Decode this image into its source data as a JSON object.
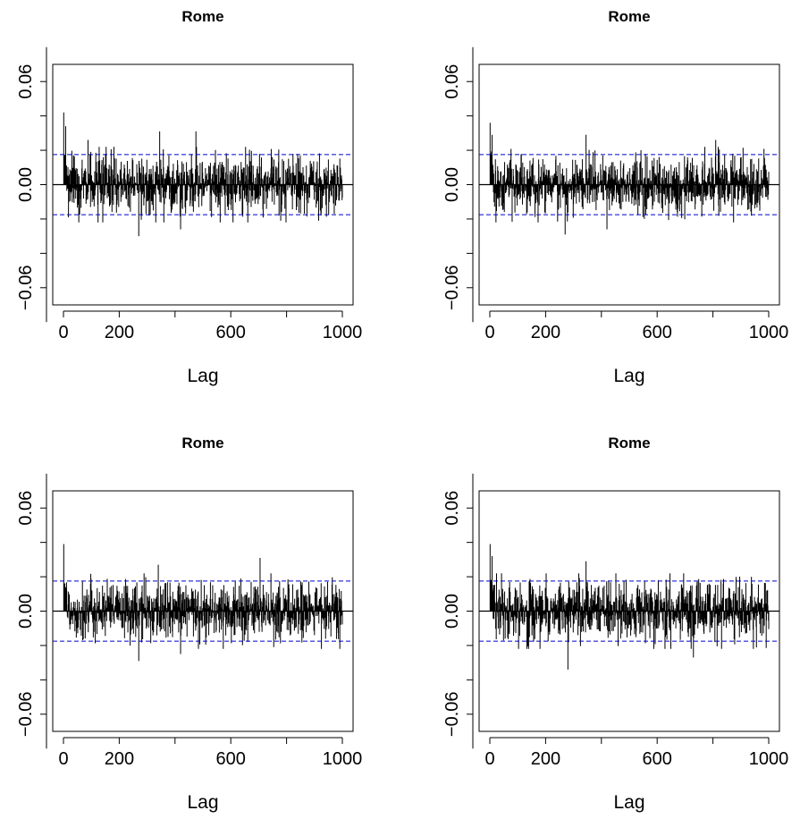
{
  "chart_data": [
    {
      "type": "bar",
      "title": "Rome",
      "xlabel": "Lag",
      "ylabel": "",
      "xlim": [
        0,
        1000
      ],
      "ylim": [
        -0.07,
        0.07
      ],
      "xticks": [
        0,
        200,
        600,
        1000
      ],
      "xtick_labels": [
        "0",
        "200",
        "600",
        "1000"
      ],
      "yticks": [
        -0.06,
        0.0,
        0.06
      ],
      "ytick_labels": [
        "−0.06",
        "0.00",
        "0.06"
      ],
      "confidence_band": 0.0175,
      "lag1_value": 0.042,
      "notable_spikes": [
        [
          8,
          0.034
        ],
        [
          88,
          0.026
        ],
        [
          270,
          -0.03
        ],
        [
          345,
          0.031
        ],
        [
          420,
          -0.026
        ],
        [
          475,
          0.031
        ]
      ],
      "grid": false,
      "legend": "none"
    },
    {
      "type": "bar",
      "title": "Rome",
      "xlabel": "Lag",
      "ylabel": "",
      "xlim": [
        0,
        1000
      ],
      "ylim": [
        -0.07,
        0.07
      ],
      "xticks": [
        0,
        200,
        600,
        1000
      ],
      "xtick_labels": [
        "0",
        "200",
        "600",
        "1000"
      ],
      "yticks": [
        -0.06,
        0.0,
        0.06
      ],
      "ytick_labels": [
        "−0.06",
        "0.00",
        "0.06"
      ],
      "confidence_band": 0.0175,
      "lag1_value": 0.036,
      "notable_spikes": [
        [
          8,
          0.029
        ],
        [
          270,
          -0.029
        ],
        [
          345,
          0.029
        ],
        [
          420,
          -0.026
        ],
        [
          810,
          0.026
        ]
      ],
      "grid": false,
      "legend": "none"
    },
    {
      "type": "bar",
      "title": "Rome",
      "xlabel": "Lag",
      "ylabel": "",
      "xlim": [
        0,
        1000
      ],
      "ylim": [
        -0.07,
        0.07
      ],
      "xticks": [
        0,
        200,
        600,
        1000
      ],
      "xtick_labels": [
        "0",
        "200",
        "600",
        "1000"
      ],
      "yticks": [
        -0.06,
        0.0,
        0.06
      ],
      "ytick_labels": [
        "−0.06",
        "0.00",
        "0.06"
      ],
      "confidence_band": 0.0175,
      "lag1_value": 0.039,
      "notable_spikes": [
        [
          270,
          -0.029
        ],
        [
          340,
          0.027
        ],
        [
          420,
          -0.025
        ],
        [
          705,
          0.031
        ]
      ],
      "grid": false,
      "legend": "none"
    },
    {
      "type": "bar",
      "title": "Rome",
      "xlabel": "Lag",
      "ylabel": "",
      "xlim": [
        0,
        1000
      ],
      "ylim": [
        -0.07,
        0.07
      ],
      "xticks": [
        0,
        200,
        600,
        1000
      ],
      "xtick_labels": [
        "0",
        "200",
        "600",
        "1000"
      ],
      "yticks": [
        -0.06,
        0.0,
        0.06
      ],
      "ytick_labels": [
        "−0.06",
        "0.00",
        "0.06"
      ],
      "confidence_band": 0.0175,
      "lag1_value": 0.039,
      "notable_spikes": [
        [
          8,
          0.032
        ],
        [
          280,
          -0.034
        ],
        [
          345,
          0.029
        ],
        [
          730,
          -0.027
        ]
      ],
      "grid": false,
      "legend": "none"
    }
  ],
  "style": {
    "series_color": "#000000",
    "band_color": "#0000cc",
    "zero_line_color": "#000000"
  }
}
